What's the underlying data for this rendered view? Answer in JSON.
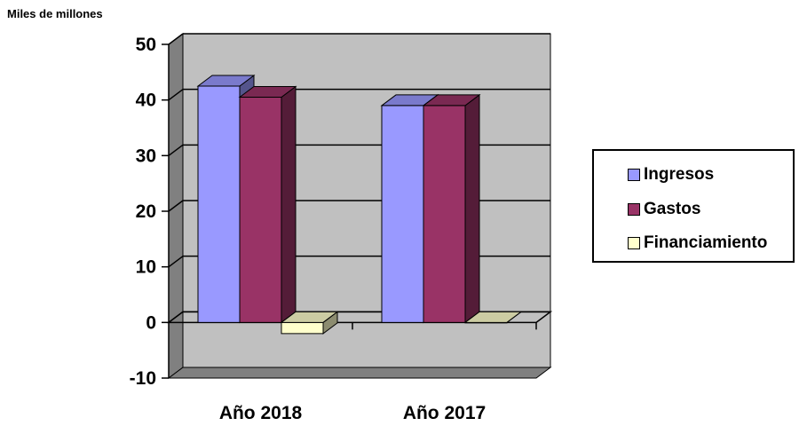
{
  "chart_data": {
    "type": "bar",
    "unit_label": "Miles de millones",
    "categories": [
      "Año 2018",
      "Año 2017"
    ],
    "series": [
      {
        "name": "Ingresos",
        "values": [
          42.5,
          39
        ],
        "color": "#9999ff"
      },
      {
        "name": "Gastos",
        "values": [
          40.5,
          39
        ],
        "color": "#993366"
      },
      {
        "name": "Financiamiento",
        "values": [
          -2,
          0
        ],
        "color": "#ffffcc"
      }
    ],
    "ylim": [
      -10,
      50
    ],
    "yticks": [
      50,
      40,
      30,
      20,
      10,
      0,
      -10
    ],
    "grid": true,
    "legend_position": "right",
    "style": "3d-clustered-column"
  }
}
